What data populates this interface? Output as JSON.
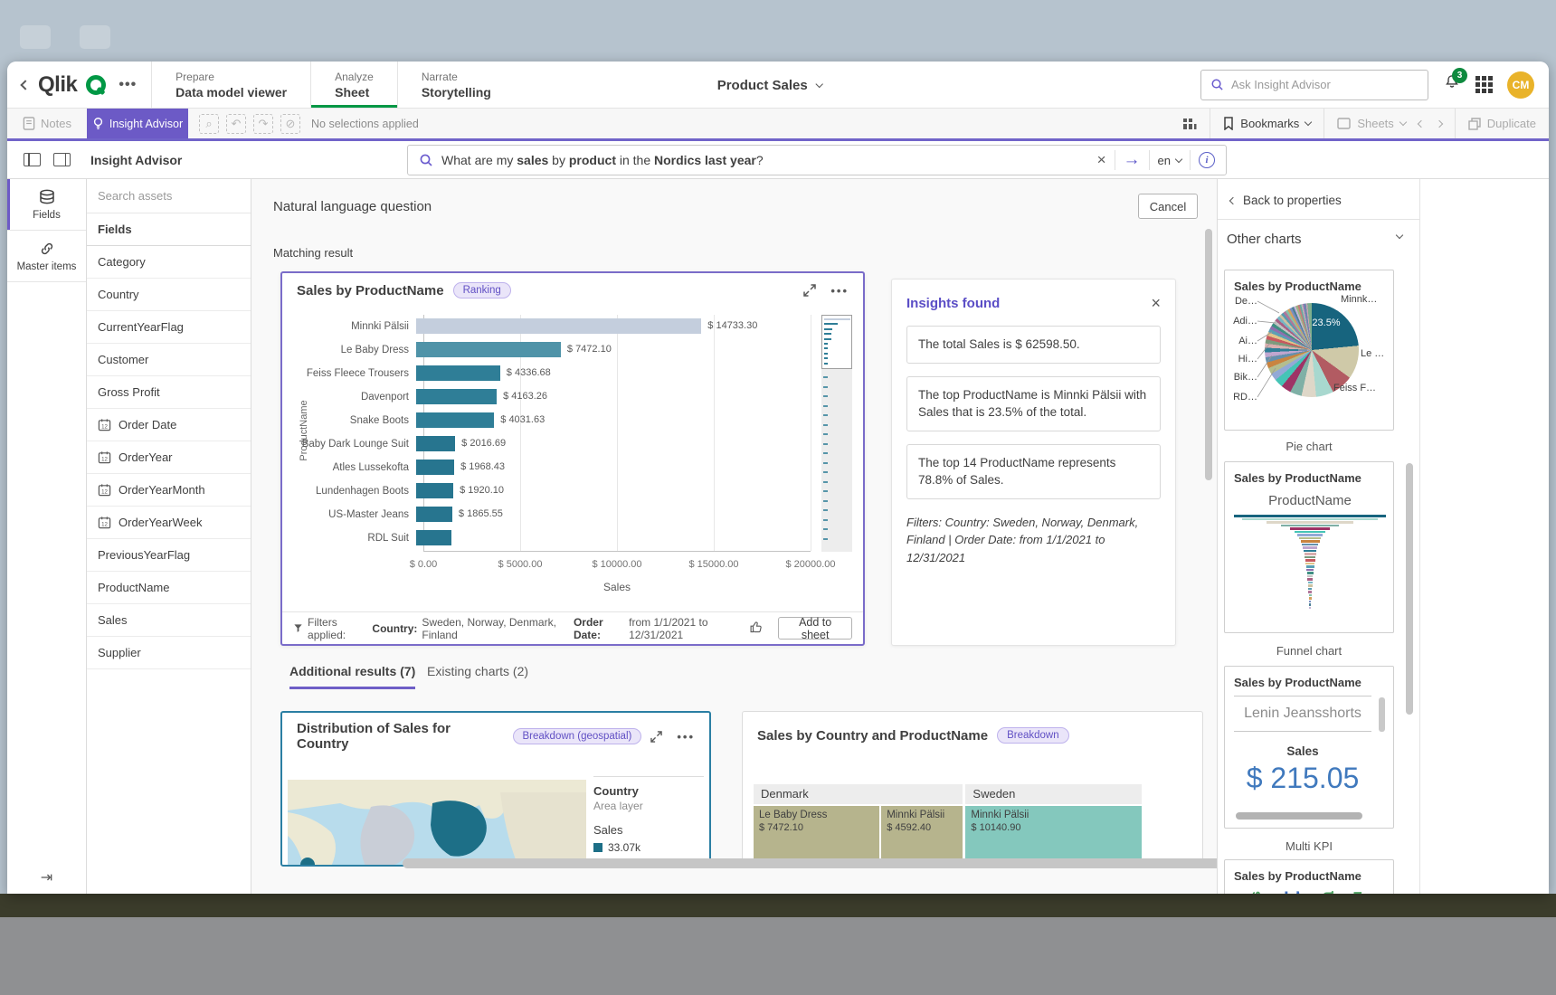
{
  "header": {
    "logo": "Qlik",
    "nav": [
      {
        "section": "Prepare",
        "page": "Data model viewer"
      },
      {
        "section": "Analyze",
        "page": "Sheet"
      },
      {
        "section": "Narrate",
        "page": "Storytelling"
      }
    ],
    "app_title": "Product Sales",
    "search_placeholder": "Ask Insight Advisor",
    "notifications_count": "3",
    "avatar_initials": "CM"
  },
  "toolbar": {
    "notes_label": "Notes",
    "insight_advisor_label": "Insight Advisor",
    "no_selections_label": "No selections applied",
    "bookmarks_label": "Bookmarks",
    "sheets_label": "Sheets",
    "duplicate_label": "Duplicate"
  },
  "ia_bar": {
    "title": "Insight Advisor",
    "language": "en",
    "query_segments": [
      {
        "text": "What are my ",
        "bold": false
      },
      {
        "text": "sales",
        "bold": true
      },
      {
        "text": " by ",
        "bold": false
      },
      {
        "text": "product",
        "bold": true
      },
      {
        "text": " in the ",
        "bold": false
      },
      {
        "text": "Nordics",
        "bold": true
      },
      {
        "text": " ",
        "bold": false
      },
      {
        "text": "last year",
        "bold": true
      },
      {
        "text": "?",
        "bold": false
      }
    ]
  },
  "assets_panel": {
    "tabs": [
      {
        "label": "Fields"
      },
      {
        "label": "Master items"
      }
    ],
    "search_placeholder": "Search assets",
    "section_header": "Fields",
    "fields": [
      {
        "name": "Category",
        "icon": ""
      },
      {
        "name": "Country",
        "icon": ""
      },
      {
        "name": "CurrentYearFlag",
        "icon": ""
      },
      {
        "name": "Customer",
        "icon": ""
      },
      {
        "name": "Gross Profit",
        "icon": ""
      },
      {
        "name": "Order Date",
        "icon": "calendar"
      },
      {
        "name": "OrderYear",
        "icon": "calendar"
      },
      {
        "name": "OrderYearMonth",
        "icon": "calendar"
      },
      {
        "name": "OrderYearWeek",
        "icon": "calendar"
      },
      {
        "name": "PreviousYearFlag",
        "icon": ""
      },
      {
        "name": "ProductName",
        "icon": ""
      },
      {
        "name": "Sales",
        "icon": ""
      },
      {
        "name": "Supplier",
        "icon": ""
      }
    ]
  },
  "main": {
    "nlq_label": "Natural language question",
    "cancel_label": "Cancel",
    "matching_result_label": "Matching result",
    "add_to_sheet_label": "Add to sheet",
    "filters_footer": {
      "prefix": "Filters applied:",
      "country_label": "Country:",
      "country_value": "Sweden, Norway, Denmark, Finland",
      "date_label": "Order Date:",
      "date_value": "from 1/1/2021 to 12/31/2021"
    },
    "tabs": [
      {
        "label": "Additional results (7)",
        "active": true
      },
      {
        "label": "Existing charts (2)",
        "active": false
      }
    ]
  },
  "insights": {
    "title": "Insights found",
    "items": [
      "The total Sales is $ 62598.50.",
      "The top ProductName is Minnki Pälsii with Sales that is 23.5% of the total.",
      "The top 14 ProductName represents 78.8% of Sales."
    ],
    "filters_note": "Filters: Country: Sweden, Norway, Denmark, Finland | Order Date: from 1/1/2021 to 12/31/2021"
  },
  "properties_panel": {
    "back_label": "Back to properties",
    "section_title": "Other charts"
  },
  "chart_data": [
    {
      "id": "sales-by-productname-bar",
      "type": "bar",
      "orientation": "horizontal",
      "title": "Sales by ProductName",
      "badge": "Ranking",
      "categories": [
        "Minnki Pälsii",
        "Le Baby Dress",
        "Feiss Fleece Trousers",
        "Davenport",
        "Snake Boots",
        "Baby Dark Lounge Suit",
        "Atles Lussekofta",
        "Lundenhagen Boots",
        "US-Master Jeans",
        "RDL Suit"
      ],
      "values": [
        14733.3,
        7472.1,
        4336.68,
        4163.26,
        4031.63,
        2016.69,
        1968.43,
        1920.1,
        1865.55,
        1800
      ],
      "value_labels": [
        "$ 14733.30",
        "$ 7472.10",
        "$ 4336.68",
        "$ 4163.26",
        "$ 4031.63",
        "$ 2016.69",
        "$ 1968.43",
        "$ 1920.10",
        "$ 1865.55",
        ""
      ],
      "bar_colors": [
        "#c4cedd",
        "#4f93a8",
        "#2f7e97",
        "#2f7e97",
        "#2f7e97",
        "#27758f",
        "#27758f",
        "#27758f",
        "#27758f",
        "#27758f"
      ],
      "xlabel": "Sales",
      "ylabel": "ProductName",
      "xlim": [
        0,
        20000
      ],
      "xticks": [
        "$ 0.00",
        "$ 5000.00",
        "$ 10000.00",
        "$ 15000.00",
        "$ 20000.00"
      ]
    },
    {
      "id": "pie-thumbnail",
      "type": "pie",
      "title": "Sales by ProductName",
      "caption": "Pie chart",
      "labeled_slice": "23.5%",
      "labels_right": [
        "Minnk…",
        "Le …",
        "Feiss F…"
      ],
      "labels_left": [
        "De…",
        "Adi…",
        "Ai…",
        "Hi…",
        "Bik…",
        "RD…"
      ],
      "slices": [
        23.5,
        11.5,
        7.5,
        6,
        5,
        4,
        3.5,
        3,
        2.5,
        2.2,
        2,
        1.8,
        1.7,
        1.6,
        1.5,
        1.4,
        1.3,
        1.25,
        1.2,
        1.15,
        1.1,
        1.05,
        1,
        1,
        0.95,
        0.9,
        0.9,
        0.85,
        0.8,
        0.8,
        0.75,
        0.7,
        0.7,
        0.65,
        0.6,
        0.6,
        0.55,
        0.5,
        0.5,
        1.5
      ]
    },
    {
      "id": "funnel-thumbnail",
      "type": "funnel",
      "title": "Sales by ProductName",
      "caption": "Funnel chart",
      "label": "ProductName"
    },
    {
      "id": "multi-kpi-thumbnail",
      "type": "kpi",
      "title": "Sales by ProductName",
      "caption": "Multi KPI",
      "item": "Lenin Jeansshorts",
      "measure": "Sales",
      "value": "$ 215.05"
    },
    {
      "id": "map-card",
      "type": "map",
      "title": "Distribution of Sales for Country",
      "badge": "Breakdown (geospatial)",
      "legend": {
        "dimension": "Country",
        "layer": "Area layer",
        "measure": "Sales",
        "value": "33.07k"
      }
    },
    {
      "id": "treemap-card",
      "type": "treemap",
      "title": "Sales by Country and ProductName",
      "badge": "Breakdown",
      "groups": [
        {
          "name": "Denmark",
          "cells": [
            {
              "name": "Le Baby Dress",
              "value": "$ 7472.10",
              "v": 7472.1,
              "color": "#b6b48d"
            },
            {
              "name": "Minnki Pälsii",
              "value": "$ 4592.40",
              "v": 4592.4,
              "color": "#b6b48d"
            }
          ]
        },
        {
          "name": "Sweden",
          "cells": [
            {
              "name": "Minnki Pälsii",
              "value": "$ 10140.90",
              "v": 10140.9,
              "color": "#84c8bd"
            }
          ]
        }
      ]
    },
    {
      "id": "wordcloud-thumbnail",
      "type": "wordcloud",
      "title": "Sales by ProductName",
      "words": [
        {
          "text": "ots",
          "color": "#53a567",
          "size": 16
        },
        {
          "text": "Suit",
          "color": "#3f6fbf",
          "size": 30
        },
        {
          "text": "Ca",
          "color": "#53a567",
          "size": 21
        },
        {
          "text": "Tu",
          "color": "#53a567",
          "size": 16
        }
      ]
    }
  ],
  "colors": {
    "accent_purple": "#6c5ac6",
    "qlik_green": "#009845",
    "bar_teal": "#2f7e97",
    "map_highlight": "#1d6f87"
  }
}
